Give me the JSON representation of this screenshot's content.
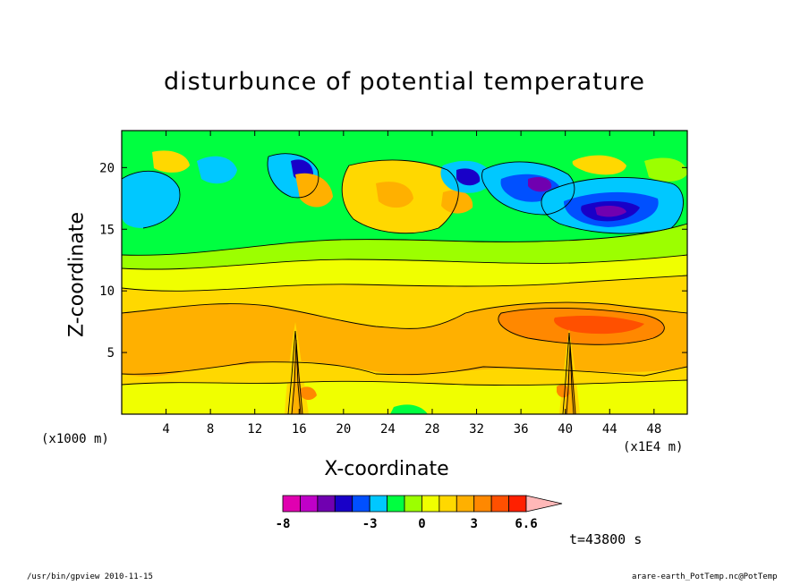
{
  "chart_data": {
    "type": "heatmap",
    "title": "disturbunce of potential temperature",
    "xlabel": "X-coordinate",
    "ylabel": "Z-coordinate",
    "x_unit_note": "(×1000 m)",
    "x_unit_right": "(×1E4 m)",
    "xlim": [
      0,
      51
    ],
    "ylim": [
      0,
      23
    ],
    "x_ticks": [
      4,
      8,
      12,
      16,
      20,
      24,
      28,
      32,
      36,
      40,
      44,
      48
    ],
    "y_ticks": [
      5,
      10,
      15,
      20
    ],
    "colorbar": {
      "levels": [
        -8,
        -7,
        -6,
        -5,
        -4,
        -3,
        -2,
        -1,
        0,
        1,
        2,
        3,
        4,
        5,
        6,
        6.6
      ],
      "labels": [
        "-8",
        "-3",
        "0",
        "3",
        "6.6"
      ],
      "colors": [
        "#e000b0",
        "#c000c8",
        "#7000b0",
        "#1800c8",
        "#0050ff",
        "#00c8ff",
        "#00ff40",
        "#9cff00",
        "#f0ff00",
        "#ffd800",
        "#ffb000",
        "#ff8800",
        "#ff5000",
        "#ff2000",
        "#ff8080",
        "#ffb8b8"
      ]
    },
    "time_label": "t=43800 s",
    "features": [
      {
        "name": "upper negative anomaly (blue)",
        "x_range": [
          40,
          50
        ],
        "z_range": [
          16,
          21
        ],
        "value_min": -7
      },
      {
        "name": "mid-level positive anomaly (orange)",
        "x_range": [
          0,
          51
        ],
        "z_range": [
          4,
          9
        ],
        "value_max": 4
      },
      {
        "name": "convective column",
        "x": 15.5,
        "z_range": [
          1,
          8
        ]
      },
      {
        "name": "convective column",
        "x": 40.5,
        "z_range": [
          1,
          7
        ]
      }
    ]
  },
  "labels": {
    "title": "disturbunce of potential temperature",
    "xlabel": "X-coordinate",
    "ylabel": "Z-coordinate",
    "x_unit_left": "(x1000 m)",
    "x_unit_right": "(x1E4 m)",
    "time": "t=43800 s",
    "footer_left": "/usr/bin/gpview   2010-11-15",
    "footer_right": "arare-earth_PotTemp.nc@PotTemp"
  }
}
